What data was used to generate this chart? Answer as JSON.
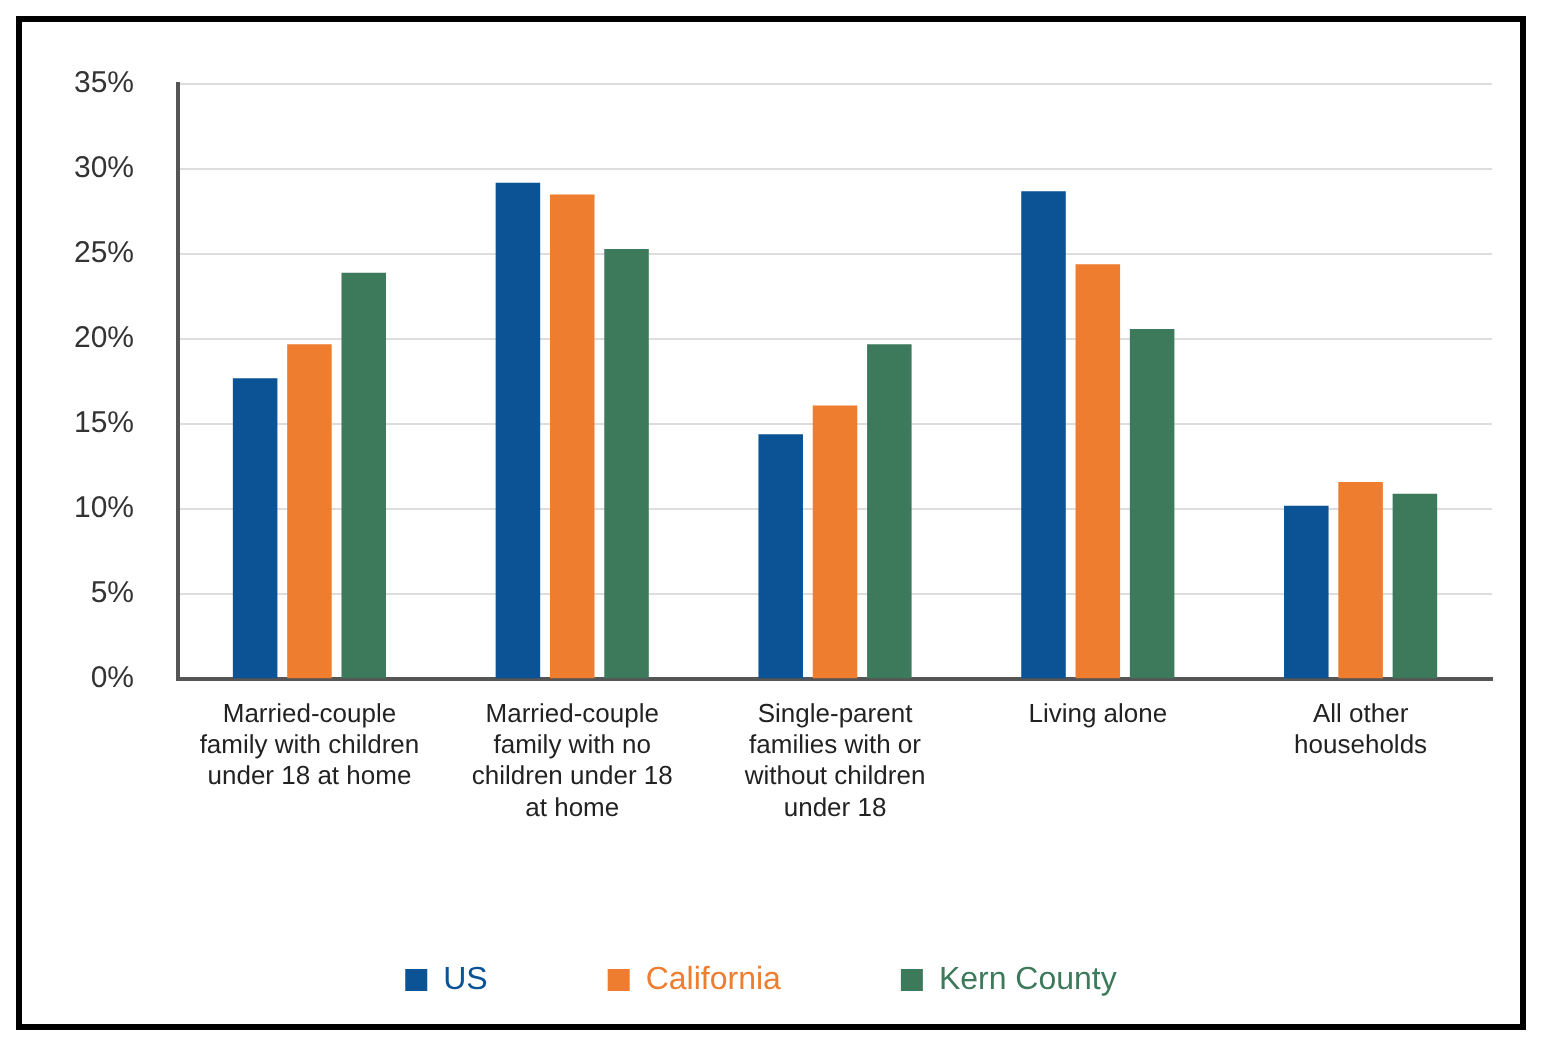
{
  "chart_data": {
    "type": "bar",
    "categories": [
      "Married-couple family with children under 18 at home",
      "Married-couple family with no children under 18 at home",
      "Single-parent families with or without children under 18",
      "Living alone",
      "All other households"
    ],
    "series": [
      {
        "name": "US",
        "color": "#0b5394",
        "values": [
          17.7,
          29.2,
          14.4,
          28.7,
          10.2
        ]
      },
      {
        "name": "California",
        "color": "#ef7d30",
        "values": [
          19.7,
          28.5,
          16.1,
          24.4,
          11.6
        ]
      },
      {
        "name": "Kern County",
        "color": "#3d7a5c",
        "values": [
          23.9,
          25.3,
          19.7,
          20.6,
          10.9
        ]
      }
    ],
    "ylim": [
      0,
      35
    ],
    "yticks": [
      {
        "value": 0,
        "label": "0%"
      },
      {
        "value": 5,
        "label": "5%"
      },
      {
        "value": 10,
        "label": "10%"
      },
      {
        "value": 15,
        "label": "15%"
      },
      {
        "value": 20,
        "label": "20%"
      },
      {
        "value": 25,
        "label": "25%"
      },
      {
        "value": 30,
        "label": "30%"
      },
      {
        "value": 35,
        "label": "35%"
      }
    ],
    "grid": "y",
    "legend": "bottom"
  }
}
